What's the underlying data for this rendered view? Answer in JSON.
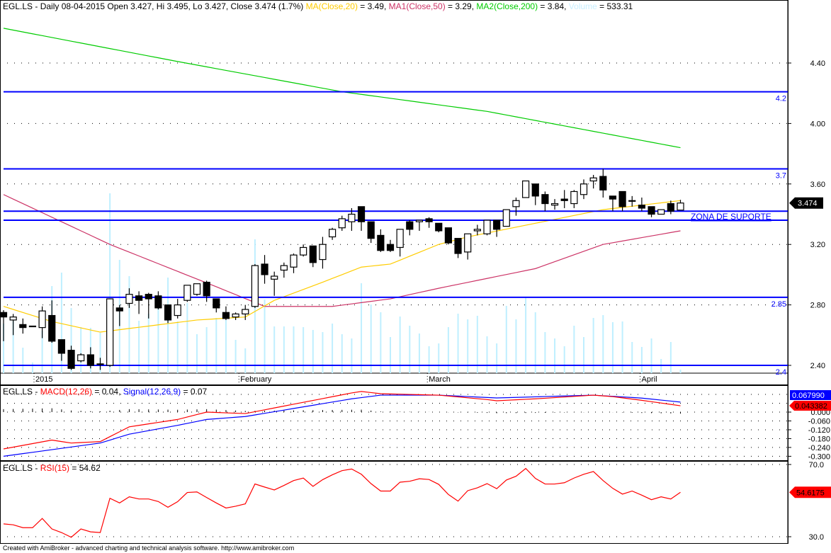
{
  "header": {
    "main": {
      "prefix": "EGL.LS - Daily 08-04-2015 Open 3.427, Hi 3.495, Lo 3.427, Close 3.474 (1.7%) ",
      "ma_label": "MA(Close,20)",
      "ma_value": " = 3.49, ",
      "ma1_label": "MA1(Close,50)",
      "ma1_value": " = 3.29, ",
      "ma2_label": "MA2(Close,200)",
      "ma2_value": " = 3.84, ",
      "volume_label": "Volume",
      "volume_value": " = 533.31"
    },
    "macd": {
      "prefix": "EGL.LS - ",
      "macd_label": "MACD(12,26)",
      "macd_value": " = 0.04, ",
      "signal_label": "Signal(12,26,9)",
      "signal_value": " = 0.07"
    },
    "rsi": {
      "prefix": "EGL.LS - ",
      "rsi_label": "RSI(15)",
      "rsi_value": " = 54.62"
    }
  },
  "footer": "Created with AmiBroker - advanced charting and technical analysis software. http://www.amibroker.com",
  "colors": {
    "ma20": "#ffcc00",
    "ma50": "#cc3366",
    "ma200": "#00cc00",
    "volume": "#bfefff",
    "hline": "#0000ff",
    "macd": "#ff0000",
    "signal": "#0000ff",
    "rsi": "#ff0000"
  },
  "chart_data": [
    {
      "type": "candlestick",
      "title": "EGL.LS - Daily",
      "ylim": [
        2.35,
        4.62
      ],
      "y_ticks": [
        "4.40",
        "4.00",
        "3.60",
        "3.20",
        "2.80",
        "2.40"
      ],
      "y_tick_values": [
        4.4,
        4.0,
        3.6,
        3.2,
        2.8,
        2.4
      ],
      "x_labels": [
        {
          "bar": 3,
          "text": "2015"
        },
        {
          "bar": 25,
          "text": "February"
        },
        {
          "bar": 45,
          "text": "March"
        },
        {
          "bar": 67,
          "text": "April"
        }
      ],
      "last_price_tag": "3.474",
      "ohlc": [
        [
          2.75,
          2.765,
          2.56,
          2.72
        ],
        [
          2.7,
          2.74,
          2.6,
          2.72
        ],
        [
          2.67,
          2.71,
          2.61,
          2.65
        ],
        [
          2.66,
          2.66,
          2.66,
          2.66
        ],
        [
          2.65,
          2.79,
          2.58,
          2.76
        ],
        [
          2.73,
          2.83,
          2.55,
          2.56
        ],
        [
          2.57,
          2.57,
          2.43,
          2.48
        ],
        [
          2.5,
          2.53,
          2.37,
          2.38
        ],
        [
          2.43,
          2.48,
          2.42,
          2.47
        ],
        [
          2.47,
          2.52,
          2.38,
          2.4
        ],
        [
          2.41,
          2.45,
          2.37,
          2.41
        ],
        [
          2.4,
          2.84,
          2.39,
          2.84
        ],
        [
          2.78,
          2.8,
          2.66,
          2.76
        ],
        [
          2.81,
          2.91,
          2.78,
          2.87
        ],
        [
          2.86,
          2.89,
          2.74,
          2.83
        ],
        [
          2.87,
          2.88,
          2.71,
          2.84
        ],
        [
          2.86,
          2.89,
          2.77,
          2.78
        ],
        [
          2.8,
          2.8,
          2.68,
          2.7
        ],
        [
          2.73,
          2.84,
          2.71,
          2.8
        ],
        [
          2.83,
          2.93,
          2.82,
          2.93
        ],
        [
          2.87,
          2.94,
          2.86,
          2.94
        ],
        [
          2.95,
          2.96,
          2.82,
          2.86
        ],
        [
          2.84,
          2.84,
          2.75,
          2.78
        ],
        [
          2.75,
          2.79,
          2.7,
          2.71
        ],
        [
          2.72,
          2.75,
          2.7,
          2.74
        ],
        [
          2.74,
          2.8,
          2.7,
          2.77
        ],
        [
          2.79,
          3.07,
          2.78,
          3.06
        ],
        [
          3.07,
          3.13,
          2.94,
          3.0
        ],
        [
          2.97,
          3.02,
          2.86,
          2.99
        ],
        [
          3.03,
          3.08,
          2.98,
          3.06
        ],
        [
          3.05,
          3.14,
          3.01,
          3.13
        ],
        [
          3.13,
          3.2,
          3.12,
          3.18
        ],
        [
          3.19,
          3.19,
          3.05,
          3.08
        ],
        [
          3.1,
          3.25,
          3.04,
          3.2
        ],
        [
          3.25,
          3.31,
          3.23,
          3.3
        ],
        [
          3.31,
          3.39,
          3.29,
          3.37
        ],
        [
          3.35,
          3.44,
          3.29,
          3.4
        ],
        [
          3.45,
          3.45,
          3.29,
          3.35
        ],
        [
          3.35,
          3.35,
          3.21,
          3.24
        ],
        [
          3.26,
          3.3,
          3.15,
          3.16
        ],
        [
          3.2,
          3.23,
          3.15,
          3.16
        ],
        [
          3.18,
          3.3,
          3.12,
          3.3
        ],
        [
          3.35,
          3.36,
          3.26,
          3.3
        ],
        [
          3.35,
          3.36,
          3.29,
          3.36
        ],
        [
          3.37,
          3.38,
          3.31,
          3.35
        ],
        [
          3.34,
          3.34,
          3.28,
          3.29
        ],
        [
          3.31,
          3.31,
          3.2,
          3.21
        ],
        [
          3.24,
          3.24,
          3.11,
          3.14
        ],
        [
          3.15,
          3.27,
          3.1,
          3.27
        ],
        [
          3.29,
          3.33,
          3.26,
          3.3
        ],
        [
          3.27,
          3.36,
          3.26,
          3.36
        ],
        [
          3.36,
          3.36,
          3.25,
          3.3
        ],
        [
          3.32,
          3.43,
          3.32,
          3.43
        ],
        [
          3.45,
          3.51,
          3.39,
          3.49
        ],
        [
          3.51,
          3.62,
          3.51,
          3.62
        ],
        [
          3.6,
          3.6,
          3.46,
          3.52
        ],
        [
          3.53,
          3.55,
          3.42,
          3.47
        ],
        [
          3.46,
          3.5,
          3.43,
          3.47
        ],
        [
          3.5,
          3.56,
          3.44,
          3.49
        ],
        [
          3.47,
          3.56,
          3.44,
          3.55
        ],
        [
          3.53,
          3.63,
          3.5,
          3.6
        ],
        [
          3.62,
          3.66,
          3.57,
          3.64
        ],
        [
          3.65,
          3.7,
          3.51,
          3.56
        ],
        [
          3.52,
          3.52,
          3.42,
          3.5
        ],
        [
          3.55,
          3.55,
          3.42,
          3.45
        ],
        [
          3.49,
          3.52,
          3.45,
          3.49
        ],
        [
          3.46,
          3.51,
          3.42,
          3.44
        ],
        [
          3.45,
          3.45,
          3.38,
          3.4
        ],
        [
          3.4,
          3.43,
          3.4,
          3.43
        ],
        [
          3.47,
          3.49,
          3.4,
          3.42
        ],
        [
          3.427,
          3.495,
          3.427,
          3.474
        ]
      ],
      "volume_relative": [
        70,
        74,
        36,
        15,
        60,
        123,
        142,
        92,
        65,
        64,
        57,
        254,
        160,
        137,
        74,
        84,
        100,
        135,
        73,
        99,
        55,
        65,
        78,
        75,
        47,
        35,
        189,
        104,
        66,
        66,
        66,
        65,
        61,
        58,
        70,
        55,
        49,
        127,
        97,
        86,
        51,
        80,
        67,
        56,
        38,
        42,
        65,
        84,
        76,
        81,
        52,
        42,
        95,
        76,
        107,
        86,
        58,
        49,
        38,
        67,
        51,
        78,
        82,
        72,
        73,
        44,
        37,
        49,
        20,
        44,
        5
      ],
      "ma20": [
        [
          0,
          2.79
        ],
        [
          5,
          2.69
        ],
        [
          10,
          2.62
        ],
        [
          15,
          2.66
        ],
        [
          20,
          2.7
        ],
        [
          25,
          2.72
        ],
        [
          28,
          2.83
        ],
        [
          33,
          2.95
        ],
        [
          37,
          3.05
        ],
        [
          40,
          3.07
        ],
        [
          45,
          3.2
        ],
        [
          48,
          3.25
        ],
        [
          55,
          3.34
        ],
        [
          62,
          3.43
        ],
        [
          70,
          3.49
        ]
      ],
      "ma50": [
        [
          0,
          3.53
        ],
        [
          11,
          3.2
        ],
        [
          22,
          2.92
        ],
        [
          27,
          2.79
        ],
        [
          34,
          2.79
        ],
        [
          40,
          2.84
        ],
        [
          45,
          2.91
        ],
        [
          55,
          3.04
        ],
        [
          62,
          3.2
        ],
        [
          70,
          3.29
        ]
      ],
      "ma200": [
        [
          0,
          4.63
        ],
        [
          18,
          4.41
        ],
        [
          35,
          4.21
        ],
        [
          50,
          4.08
        ],
        [
          70,
          3.84
        ]
      ],
      "horizontal_lines": [
        {
          "value": 4.21,
          "label": "4.2"
        },
        {
          "value": 3.7,
          "label": "3.7"
        },
        {
          "value": 3.42,
          "label": "ZONA DE SUPORTE"
        },
        {
          "value": 3.36,
          "label": ""
        },
        {
          "value": 2.85,
          "label": "2.85"
        },
        {
          "value": 2.4,
          "label": "2.4"
        }
      ]
    },
    {
      "type": "line",
      "title": "MACD(12,26) / Signal(12,26,9)",
      "ylim": [
        -0.32,
        0.18
      ],
      "y_ticks": [
        "0.000",
        "-0.060",
        "-0.120",
        "-0.180",
        "-0.240",
        "-0.300"
      ],
      "y_tick_values": [
        0,
        -0.06,
        -0.12,
        -0.18,
        -0.24,
        -0.3
      ],
      "signal_tag": "0.067990",
      "macd_tag": "0.043382",
      "macd": [
        [
          0,
          -0.25
        ],
        [
          5,
          -0.19
        ],
        [
          7,
          -0.21
        ],
        [
          10,
          -0.2
        ],
        [
          13,
          -0.1
        ],
        [
          18,
          -0.05
        ],
        [
          21,
          0.0
        ],
        [
          25,
          -0.01
        ],
        [
          36,
          0.13
        ],
        [
          37,
          0.14
        ],
        [
          39,
          0.125
        ],
        [
          45,
          0.115
        ],
        [
          50,
          0.085
        ],
        [
          51,
          0.077
        ],
        [
          55,
          0.09
        ],
        [
          61,
          0.115
        ],
        [
          63,
          0.105
        ],
        [
          66,
          0.08
        ],
        [
          70,
          0.043
        ]
      ],
      "signal": [
        [
          0,
          -0.3
        ],
        [
          10,
          -0.21
        ],
        [
          13,
          -0.15
        ],
        [
          18,
          -0.09
        ],
        [
          21,
          -0.05
        ],
        [
          25,
          -0.03
        ],
        [
          36,
          0.09
        ],
        [
          39,
          0.115
        ],
        [
          45,
          0.115
        ],
        [
          51,
          0.096
        ],
        [
          61,
          0.115
        ],
        [
          66,
          0.095
        ],
        [
          70,
          0.068
        ]
      ]
    },
    {
      "type": "line",
      "title": "RSI(15)",
      "ylim": [
        28,
        72
      ],
      "y_ticks": [
        "70.0",
        "30.0"
      ],
      "y_tick_values": [
        70,
        30
      ],
      "rsi_tag": "54.6175",
      "rsi": [
        37.1,
        36.6,
        35.0,
        35.0,
        40.1,
        34.3,
        32.3,
        29.7,
        34.3,
        32.7,
        32.3,
        51.3,
        48.7,
        52.1,
        50.9,
        50.9,
        49.5,
        46.3,
        49.4,
        54.5,
        54.8,
        51.7,
        48.7,
        45.9,
        46.9,
        48.2,
        59.2,
        57.5,
        55.9,
        58.4,
        61.1,
        62.5,
        57.9,
        61.6,
        64.3,
        66.6,
        67.5,
        64.6,
        59.4,
        55.3,
        55.3,
        60.2,
        60.7,
        62.1,
        61.7,
        59.0,
        53.4,
        49.7,
        55.5,
        57.1,
        59.4,
        56.6,
        61.4,
        63.5,
        67.8,
        62.3,
        59.2,
        59.2,
        59.9,
        62.5,
        64.6,
        66.1,
        61.1,
        56.8,
        53.6,
        55.3,
        53.0,
        50.5,
        52.1,
        50.9,
        54.6
      ]
    }
  ]
}
